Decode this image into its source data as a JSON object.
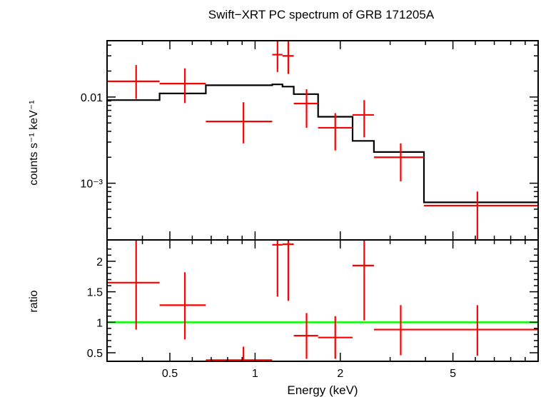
{
  "chart_data": {
    "type": "line",
    "title": "Swift−XRT PC spectrum of GRB 171205A",
    "xlabel": "Energy (keV)",
    "x_scale": "log",
    "xlim": [
      0.3,
      10
    ],
    "x_ticks": [
      {
        "value": 0.5,
        "label": "0.5"
      },
      {
        "value": 1,
        "label": "1"
      },
      {
        "value": 2,
        "label": "2"
      },
      {
        "value": 5,
        "label": "5"
      }
    ],
    "colors": {
      "data": "#ff0000",
      "model": "#000000",
      "ratio_line": "#00ff00"
    },
    "panels": [
      {
        "id": "spectrum",
        "ylabel": "counts s⁻¹ keV⁻¹",
        "y_scale": "log",
        "ylim": [
          0.00022,
          0.045
        ],
        "y_ticks": [
          {
            "value": 0.01,
            "label": "0.01"
          },
          {
            "value": 0.001,
            "label": "10⁻³"
          }
        ],
        "data": [
          {
            "x": 0.38,
            "xlo": 0.3,
            "xhi": 0.46,
            "y": 0.0152,
            "ylo": 0.0095,
            "yhi": 0.0235
          },
          {
            "x": 0.565,
            "xlo": 0.46,
            "xhi": 0.67,
            "y": 0.0143,
            "ylo": 0.0085,
            "yhi": 0.0215
          },
          {
            "x": 0.91,
            "xlo": 0.67,
            "xhi": 1.15,
            "y": 0.0052,
            "ylo": 0.0029,
            "yhi": 0.0087
          },
          {
            "x": 1.2,
            "xlo": 1.15,
            "xhi": 1.25,
            "y": 0.031,
            "ylo": 0.0195,
            "yhi": 0.045
          },
          {
            "x": 1.31,
            "xlo": 1.25,
            "xhi": 1.37,
            "y": 0.03,
            "ylo": 0.0185,
            "yhi": 0.045
          },
          {
            "x": 1.52,
            "xlo": 1.37,
            "xhi": 1.67,
            "y": 0.0084,
            "ylo": 0.0044,
            "yhi": 0.0123
          },
          {
            "x": 1.92,
            "xlo": 1.67,
            "xhi": 2.21,
            "y": 0.0044,
            "ylo": 0.0024,
            "yhi": 0.0065
          },
          {
            "x": 2.43,
            "xlo": 2.21,
            "xhi": 2.63,
            "y": 0.0062,
            "ylo": 0.0034,
            "yhi": 0.0092
          },
          {
            "x": 3.27,
            "xlo": 2.63,
            "xhi": 3.95,
            "y": 0.002,
            "ylo": 0.00105,
            "yhi": 0.0029
          },
          {
            "x": 6.1,
            "xlo": 3.95,
            "xhi": 10,
            "y": 0.00055,
            "ylo": 0.00022,
            "yhi": 0.0008
          }
        ],
        "model_steps": [
          {
            "xlo": 0.3,
            "xhi": 0.46,
            "y": 0.0092
          },
          {
            "xlo": 0.46,
            "xhi": 0.67,
            "y": 0.011
          },
          {
            "xlo": 0.67,
            "xhi": 1.15,
            "y": 0.0137
          },
          {
            "xlo": 1.15,
            "xhi": 1.25,
            "y": 0.014
          },
          {
            "xlo": 1.25,
            "xhi": 1.37,
            "y": 0.0132
          },
          {
            "xlo": 1.37,
            "xhi": 1.67,
            "y": 0.0108
          },
          {
            "xlo": 1.67,
            "xhi": 2.21,
            "y": 0.0059
          },
          {
            "xlo": 2.21,
            "xhi": 2.63,
            "y": 0.0031
          },
          {
            "xlo": 2.63,
            "xhi": 3.95,
            "y": 0.0023
          },
          {
            "xlo": 3.95,
            "xhi": 10,
            "y": 0.0006
          }
        ]
      },
      {
        "id": "ratio",
        "ylabel": "ratio",
        "y_scale": "linear",
        "ylim": [
          0.36,
          2.35
        ],
        "y_ticks": [
          {
            "value": 0.5,
            "label": "0.5"
          },
          {
            "value": 1,
            "label": "1"
          },
          {
            "value": 1.5,
            "label": "1.5"
          },
          {
            "value": 2,
            "label": "2"
          }
        ],
        "reference_line": 1,
        "data": [
          {
            "x": 0.38,
            "xlo": 0.3,
            "xhi": 0.46,
            "y": 1.65,
            "ylo": 0.88,
            "yhi": 2.35
          },
          {
            "x": 0.565,
            "xlo": 0.46,
            "xhi": 0.67,
            "y": 1.28,
            "ylo": 0.72,
            "yhi": 1.82
          },
          {
            "x": 0.91,
            "xlo": 0.67,
            "xhi": 1.15,
            "y": 0.38,
            "ylo": 0.36,
            "yhi": 0.6
          },
          {
            "x": 1.2,
            "xlo": 1.15,
            "xhi": 1.25,
            "y": 2.27,
            "ylo": 1.42,
            "yhi": 2.35
          },
          {
            "x": 1.31,
            "xlo": 1.25,
            "xhi": 1.37,
            "y": 2.28,
            "ylo": 1.35,
            "yhi": 2.35
          },
          {
            "x": 1.52,
            "xlo": 1.37,
            "xhi": 1.67,
            "y": 0.78,
            "ylo": 0.4,
            "yhi": 1.15
          },
          {
            "x": 1.92,
            "xlo": 1.67,
            "xhi": 2.21,
            "y": 0.75,
            "ylo": 0.4,
            "yhi": 1.1
          },
          {
            "x": 2.43,
            "xlo": 2.21,
            "xhi": 2.63,
            "y": 1.93,
            "ylo": 1.03,
            "yhi": 2.35
          },
          {
            "x": 3.27,
            "xlo": 2.63,
            "xhi": 3.95,
            "y": 0.88,
            "ylo": 0.46,
            "yhi": 1.28
          },
          {
            "x": 6.1,
            "xlo": 3.95,
            "xhi": 10,
            "y": 0.88,
            "ylo": 0.45,
            "yhi": 1.28
          }
        ]
      }
    ]
  }
}
